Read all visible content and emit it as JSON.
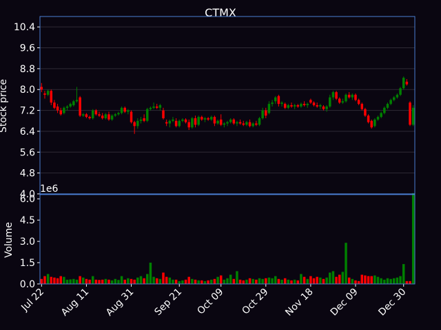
{
  "chart_data": {
    "type": "candlestick",
    "title": "CTMX",
    "price_panel": {
      "ylabel": "Stock price",
      "ylim": [
        4.0,
        10.8
      ],
      "yticks": [
        4.0,
        4.8,
        5.6,
        6.4,
        7.2,
        8.0,
        8.8,
        9.6,
        10.4
      ],
      "ytick_labels": [
        "4.0",
        "4.8",
        "5.6",
        "6.4",
        "7.2",
        "8.0",
        "8.8",
        "9.6",
        "10.4"
      ],
      "grid": true
    },
    "volume_panel": {
      "ylabel": "Volume",
      "offset_label": "1e6",
      "ylim": [
        0,
        6.3
      ],
      "yticks": [
        0.0,
        1.5,
        3.0,
        4.5,
        6.0
      ],
      "ytick_labels": [
        "0.0",
        "1.5",
        "3.0",
        "4.5",
        "6.0"
      ]
    },
    "x_tick_labels": [
      "Jul 22",
      "Aug 11",
      "Aug 31",
      "Sep 21",
      "Oct 09",
      "Oct 29",
      "Nov 18",
      "Dec 09",
      "Dec 30"
    ],
    "x_tick_index": [
      0,
      14,
      28,
      43,
      56,
      70,
      84,
      98,
      113
    ],
    "colors": {
      "up": "#008000",
      "down": "#ff0000",
      "frame": "#4a7fd4",
      "grid": "#2f2a36",
      "background": "#0a0611"
    },
    "ohlc_v": [
      [
        8.1,
        8.25,
        7.9,
        8.0,
        0.35
      ],
      [
        7.85,
        7.95,
        7.65,
        7.8,
        0.55
      ],
      [
        7.8,
        8.0,
        7.75,
        7.95,
        0.7
      ],
      [
        7.95,
        8.0,
        7.4,
        7.5,
        0.5
      ],
      [
        7.5,
        7.6,
        7.25,
        7.3,
        0.45
      ],
      [
        7.35,
        7.45,
        7.1,
        7.2,
        0.4
      ],
      [
        7.2,
        7.3,
        7.0,
        7.05,
        0.55
      ],
      [
        7.1,
        7.35,
        7.05,
        7.3,
        0.5
      ],
      [
        7.3,
        7.4,
        7.2,
        7.35,
        0.3
      ],
      [
        7.35,
        7.5,
        7.3,
        7.45,
        0.32
      ],
      [
        7.4,
        7.6,
        7.35,
        7.55,
        0.35
      ],
      [
        7.55,
        8.1,
        7.5,
        7.6,
        0.3
      ],
      [
        7.7,
        7.75,
        6.95,
        7.0,
        0.55
      ],
      [
        7.0,
        7.1,
        6.95,
        7.05,
        0.45
      ],
      [
        7.05,
        7.1,
        6.9,
        6.95,
        0.35
      ],
      [
        6.95,
        7.0,
        6.85,
        6.9,
        0.3
      ],
      [
        6.9,
        7.25,
        6.85,
        7.2,
        0.55
      ],
      [
        7.2,
        7.25,
        7.0,
        7.05,
        0.3
      ],
      [
        7.05,
        7.15,
        6.95,
        7.0,
        0.28
      ],
      [
        7.0,
        7.1,
        6.85,
        6.9,
        0.3
      ],
      [
        6.9,
        7.1,
        6.85,
        7.05,
        0.35
      ],
      [
        7.05,
        7.15,
        6.8,
        6.85,
        0.3
      ],
      [
        6.85,
        7.05,
        6.8,
        7.0,
        0.25
      ],
      [
        7.0,
        7.1,
        6.95,
        7.05,
        0.35
      ],
      [
        7.05,
        7.15,
        7.0,
        7.1,
        0.28
      ],
      [
        7.1,
        7.35,
        7.05,
        7.3,
        0.55
      ],
      [
        7.3,
        7.35,
        7.1,
        7.15,
        0.3
      ],
      [
        7.15,
        7.25,
        7.05,
        7.2,
        0.4
      ],
      [
        7.15,
        7.2,
        6.7,
        6.75,
        0.35
      ],
      [
        6.75,
        6.8,
        6.3,
        6.6,
        0.3
      ],
      [
        6.6,
        6.9,
        6.5,
        6.8,
        0.45
      ],
      [
        6.8,
        6.95,
        6.7,
        6.85,
        0.55
      ],
      [
        6.9,
        7.05,
        6.75,
        6.8,
        0.4
      ],
      [
        6.8,
        7.3,
        6.75,
        7.25,
        0.7
      ],
      [
        7.25,
        7.35,
        7.2,
        7.3,
        1.5
      ],
      [
        7.3,
        7.5,
        7.25,
        7.35,
        0.5
      ],
      [
        7.35,
        7.45,
        7.25,
        7.3,
        0.4
      ],
      [
        7.3,
        7.45,
        7.2,
        7.4,
        0.35
      ],
      [
        7.2,
        7.3,
        6.85,
        6.9,
        0.8
      ],
      [
        6.75,
        6.85,
        6.6,
        6.7,
        0.5
      ],
      [
        6.7,
        6.85,
        6.55,
        6.8,
        0.45
      ],
      [
        6.8,
        6.95,
        6.75,
        6.85,
        0.3
      ],
      [
        6.8,
        6.9,
        6.55,
        6.6,
        0.3
      ],
      [
        6.6,
        6.85,
        6.55,
        6.8,
        0.2
      ],
      [
        6.8,
        6.9,
        6.75,
        6.85,
        0.25
      ],
      [
        6.85,
        6.9,
        6.7,
        6.75,
        0.3
      ],
      [
        6.75,
        6.85,
        6.45,
        6.55,
        0.5
      ],
      [
        6.55,
        6.95,
        6.5,
        6.9,
        0.35
      ],
      [
        6.9,
        7.0,
        6.55,
        6.65,
        0.3
      ],
      [
        6.65,
        7.0,
        6.6,
        6.95,
        0.25
      ],
      [
        6.95,
        7.0,
        6.8,
        6.85,
        0.25
      ],
      [
        6.85,
        6.95,
        6.75,
        6.9,
        0.2
      ],
      [
        6.9,
        6.95,
        6.8,
        6.85,
        0.25
      ],
      [
        6.85,
        7.0,
        6.8,
        6.95,
        0.3
      ],
      [
        6.95,
        7.0,
        6.6,
        6.7,
        0.35
      ],
      [
        6.7,
        6.85,
        6.65,
        6.8,
        0.5
      ],
      [
        6.85,
        7.05,
        6.6,
        6.65,
        0.6
      ],
      [
        6.65,
        6.75,
        6.55,
        6.7,
        0.3
      ],
      [
        6.7,
        6.8,
        6.6,
        6.75,
        0.4
      ],
      [
        6.75,
        6.9,
        6.7,
        6.85,
        0.65
      ],
      [
        6.85,
        6.9,
        6.65,
        6.7,
        0.35
      ],
      [
        6.7,
        6.8,
        6.6,
        6.75,
        0.9
      ],
      [
        6.75,
        6.85,
        6.65,
        6.7,
        0.3
      ],
      [
        6.7,
        6.8,
        6.6,
        6.65,
        0.25
      ],
      [
        6.65,
        6.8,
        6.6,
        6.75,
        0.3
      ],
      [
        6.75,
        6.85,
        6.55,
        6.6,
        0.4
      ],
      [
        6.6,
        6.75,
        6.55,
        6.7,
        0.35
      ],
      [
        6.7,
        6.8,
        6.6,
        6.65,
        0.3
      ],
      [
        6.65,
        6.95,
        6.6,
        6.9,
        0.4
      ],
      [
        6.9,
        7.3,
        6.85,
        7.2,
        0.35
      ],
      [
        7.2,
        7.3,
        6.9,
        7.0,
        0.4
      ],
      [
        7.1,
        7.55,
        7.05,
        7.45,
        0.45
      ],
      [
        7.45,
        7.6,
        7.35,
        7.5,
        0.4
      ],
      [
        7.55,
        7.75,
        7.45,
        7.7,
        0.55
      ],
      [
        7.75,
        7.8,
        7.35,
        7.45,
        0.35
      ],
      [
        7.45,
        7.55,
        7.35,
        7.5,
        0.3
      ],
      [
        7.45,
        7.5,
        7.25,
        7.3,
        0.4
      ],
      [
        7.3,
        7.45,
        7.25,
        7.4,
        0.3
      ],
      [
        7.4,
        7.5,
        7.3,
        7.35,
        0.25
      ],
      [
        7.35,
        7.45,
        7.25,
        7.4,
        0.3
      ],
      [
        7.4,
        7.45,
        7.3,
        7.35,
        0.25
      ],
      [
        7.35,
        7.5,
        7.3,
        7.45,
        0.7
      ],
      [
        7.45,
        7.55,
        7.35,
        7.4,
        0.5
      ],
      [
        7.4,
        7.5,
        7.3,
        7.45,
        0.35
      ],
      [
        7.6,
        7.65,
        7.45,
        7.5,
        0.55
      ],
      [
        7.5,
        7.55,
        7.35,
        7.4,
        0.4
      ],
      [
        7.4,
        7.5,
        7.3,
        7.35,
        0.5
      ],
      [
        7.35,
        7.45,
        7.25,
        7.4,
        0.45
      ],
      [
        7.35,
        7.4,
        7.2,
        7.25,
        0.35
      ],
      [
        7.25,
        7.4,
        7.15,
        7.35,
        0.45
      ],
      [
        7.35,
        7.8,
        7.3,
        7.7,
        0.8
      ],
      [
        7.7,
        7.95,
        7.6,
        7.9,
        0.9
      ],
      [
        7.9,
        7.95,
        7.6,
        7.65,
        0.5
      ],
      [
        7.65,
        7.7,
        7.45,
        7.5,
        0.65
      ],
      [
        7.5,
        7.65,
        7.45,
        7.55,
        0.85
      ],
      [
        7.55,
        7.85,
        7.5,
        7.8,
        2.9
      ],
      [
        7.8,
        7.9,
        7.65,
        7.7,
        0.45
      ],
      [
        7.7,
        7.85,
        7.6,
        7.8,
        0.35
      ],
      [
        7.8,
        7.85,
        7.55,
        7.6,
        0.25
      ],
      [
        7.6,
        7.65,
        7.4,
        7.45,
        0.2
      ],
      [
        7.45,
        7.5,
        7.2,
        7.25,
        0.65
      ],
      [
        7.25,
        7.3,
        6.95,
        7.0,
        0.6
      ],
      [
        7.0,
        7.05,
        6.7,
        6.75,
        0.55
      ],
      [
        6.8,
        6.85,
        6.5,
        6.55,
        0.55
      ],
      [
        6.6,
        6.9,
        6.55,
        6.85,
        0.6
      ],
      [
        6.85,
        7.0,
        6.8,
        6.95,
        0.5
      ],
      [
        6.95,
        7.15,
        6.9,
        7.1,
        0.4
      ],
      [
        7.1,
        7.35,
        7.05,
        7.3,
        0.3
      ],
      [
        7.3,
        7.5,
        7.25,
        7.45,
        0.4
      ],
      [
        7.45,
        7.65,
        7.4,
        7.6,
        0.35
      ],
      [
        7.6,
        7.75,
        7.55,
        7.7,
        0.4
      ],
      [
        7.7,
        7.85,
        7.65,
        7.8,
        0.45
      ],
      [
        7.8,
        8.1,
        7.75,
        8.05,
        0.55
      ],
      [
        8.05,
        8.5,
        8.0,
        8.45,
        1.4
      ],
      [
        8.3,
        8.4,
        8.15,
        8.2,
        0.2
      ],
      [
        7.5,
        7.55,
        6.6,
        6.65,
        0.2
      ],
      [
        6.65,
        7.4,
        6.6,
        7.3,
        6.4
      ]
    ]
  }
}
